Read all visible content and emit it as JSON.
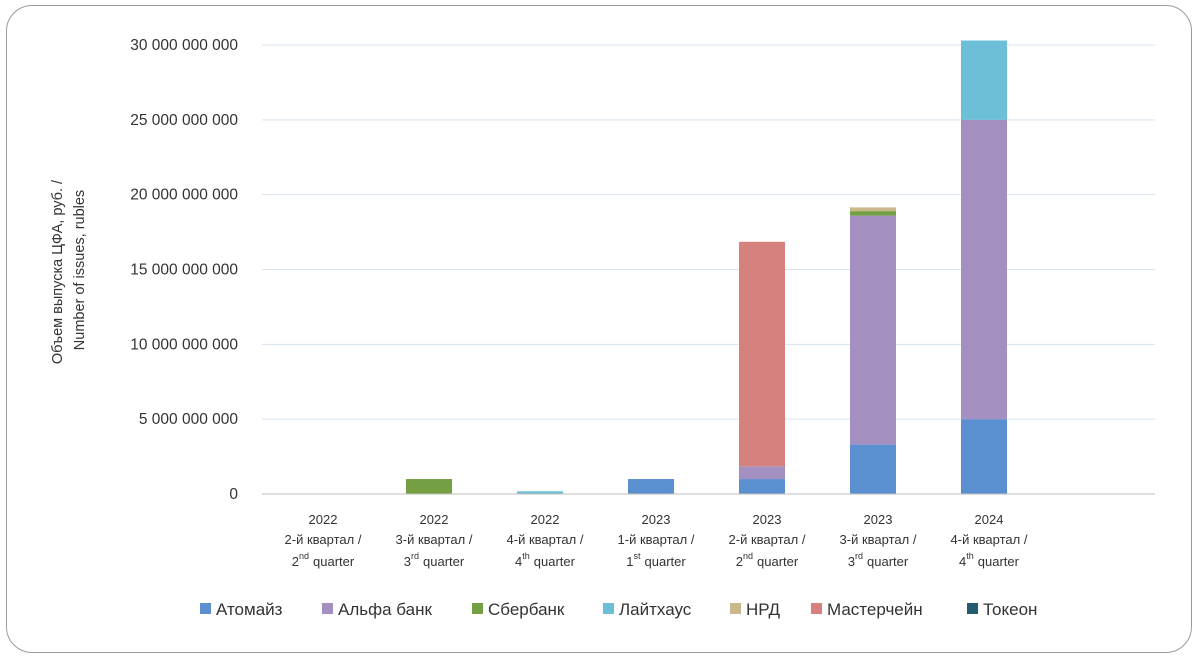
{
  "chart_data": {
    "type": "bar",
    "stacked": true,
    "ylabel": [
      "Объем выпуска ЦФА, руб. /",
      "Number of issues, rubles"
    ],
    "ylim": [
      0,
      30000000000
    ],
    "yticks": [
      0,
      5000000000,
      10000000000,
      15000000000,
      20000000000,
      25000000000,
      30000000000
    ],
    "ytick_labels": [
      "0",
      "5 000 000 000",
      "10 000 000 000",
      "15 000 000 000",
      "20 000 000 000",
      "25 000 000 000",
      "30 000 000 000"
    ],
    "grid": true,
    "legend_position": "bottom",
    "categories": [
      {
        "year": "2022",
        "ru": "2-й квартал /",
        "num": "2",
        "sup": "nd",
        "en": "quarter"
      },
      {
        "year": "2022",
        "ru": "3-й квартал /",
        "num": "3",
        "sup": "rd",
        "en": "quarter"
      },
      {
        "year": "2022",
        "ru": "4-й квартал /",
        "num": "4",
        "sup": "th",
        "en": "quarter"
      },
      {
        "year": "2023",
        "ru": "1-й квартал /",
        "num": "1",
        "sup": "st",
        "en": "quarter"
      },
      {
        "year": "2023",
        "ru": "2-й квартал /",
        "num": "2",
        "sup": "nd",
        "en": "quarter"
      },
      {
        "year": "2023",
        "ru": "3-й квартал /",
        "num": "3",
        "sup": "rd",
        "en": "quarter"
      },
      {
        "year": "2024",
        "ru": "4-й квартал /",
        "num": "4",
        "sup": "th",
        "en": "quarter"
      }
    ],
    "series": [
      {
        "name": "Атомайз",
        "color": "#5b8fd0",
        "values": [
          0,
          0,
          0,
          1000000000,
          1000000000,
          3300000000,
          5000000000
        ]
      },
      {
        "name": "Альфа банк",
        "color": "#a48fc1",
        "values": [
          0,
          0,
          0,
          0,
          850000000,
          15300000000,
          20000000000
        ]
      },
      {
        "name": "Сбербанк",
        "color": "#74a043",
        "values": [
          0,
          1000000000,
          0,
          0,
          0,
          300000000,
          0
        ]
      },
      {
        "name": "Лайтхаус",
        "color": "#6cbfd6",
        "values": [
          0,
          0,
          180000000,
          0,
          0,
          0,
          5300000000
        ]
      },
      {
        "name": "НРД",
        "color": "#c8b88a",
        "values": [
          0,
          0,
          0,
          0,
          0,
          250000000,
          0
        ]
      },
      {
        "name": "Мастерчейн",
        "color": "#d6817d",
        "values": [
          0,
          0,
          0,
          0,
          15000000000,
          0,
          0
        ]
      },
      {
        "name": "Токеон",
        "color": "#215d6e",
        "values": [
          0,
          0,
          0,
          0,
          0,
          0,
          0
        ]
      }
    ]
  }
}
